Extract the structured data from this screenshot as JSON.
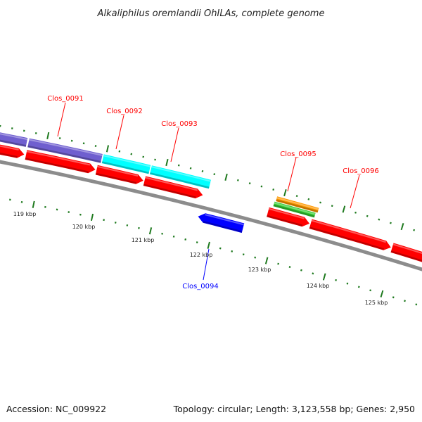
{
  "title": "Alkaliphilus oremlandii OhILAs, complete genome",
  "footer": {
    "accession": "Accession: NC_009922",
    "summary": "Topology: circular; Length: 3,123,558 bp; Genes: 2,950"
  },
  "colors": {
    "cds": "#ff0000",
    "backbone": "#8c8c8c",
    "ruler": "#1f7a1f",
    "purple": "#6f5fcf",
    "cyan": "#00ffff",
    "orange": "#ff9900",
    "green": "#33cc33",
    "reverse": "#0000ff",
    "label_forward": "#ff0000",
    "label_reverse": "#0000ff"
  },
  "ruler_labels": [
    "119 kbp",
    "120 kbp",
    "121 kbp",
    "122 kbp",
    "123 kbp",
    "124 kbp",
    "125 kbp"
  ],
  "gene_labels": [
    {
      "name": "Clos_0091",
      "strand": "forward"
    },
    {
      "name": "Clos_0092",
      "strand": "forward"
    },
    {
      "name": "Clos_0093",
      "strand": "forward"
    },
    {
      "name": "Clos_0094",
      "strand": "reverse"
    },
    {
      "name": "Clos_0095",
      "strand": "forward"
    },
    {
      "name": "Clos_0096",
      "strand": "forward"
    }
  ]
}
